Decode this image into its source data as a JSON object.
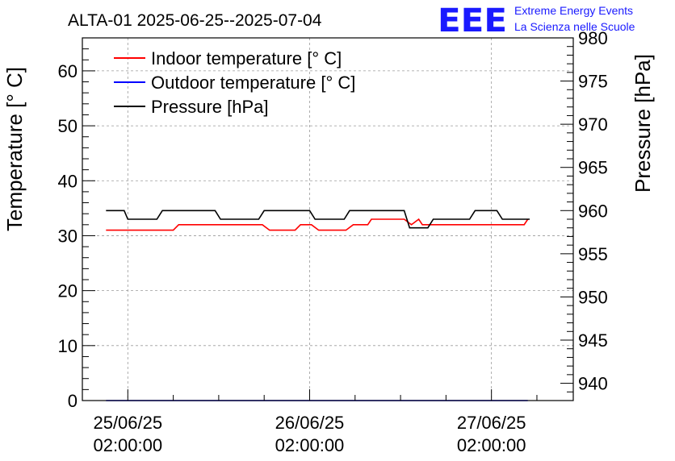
{
  "logo": {
    "big_text": "EEE",
    "line1": "Extreme Energy Events",
    "line2": "La Scienza nelle Scuole",
    "color": "#1a1aff"
  },
  "chart_data": {
    "type": "line",
    "title": "ALTA-01 2025-06-25--2025-07-04",
    "ylabel": "Temperature [° C]",
    "y2label": "Pressure [hPa]",
    "ylim": [
      0,
      66
    ],
    "y2lim": [
      938,
      980
    ],
    "xlim": [
      -0.25,
      2.45
    ],
    "yticks": [
      0,
      10,
      20,
      30,
      40,
      50,
      60
    ],
    "y2ticks": [
      940,
      945,
      950,
      955,
      960,
      965,
      970,
      975,
      980
    ],
    "xticks": [
      {
        "value": 0,
        "label_line1": "25/06/25",
        "label_line2": "02:00:00"
      },
      {
        "value": 1,
        "label_line1": "26/06/25",
        "label_line2": "02:00:00"
      },
      {
        "value": 2,
        "label_line1": "27/06/25",
        "label_line2": "02:00:00"
      }
    ],
    "grid": true,
    "legend_position": "top-left",
    "series": [
      {
        "name": "Indoor temperature [° C]",
        "color": "#ff0000",
        "axis": "left",
        "x": [
          -0.12,
          0.25,
          0.28,
          0.74,
          0.78,
          0.92,
          0.95,
          1.01,
          1.05,
          1.2,
          1.24,
          1.32,
          1.34,
          1.52,
          1.56,
          1.6,
          1.62,
          2.18,
          2.2
        ],
        "y": [
          31,
          31,
          32,
          32,
          31,
          31,
          32,
          32,
          31,
          31,
          32,
          32,
          33,
          33,
          32,
          33,
          32,
          32,
          33
        ]
      },
      {
        "name": "Outdoor temperature [° C]",
        "color": "#0000ff",
        "axis": "left",
        "x": [
          -0.12,
          2.2
        ],
        "y": [
          0,
          0
        ]
      },
      {
        "name": "Pressure [hPa]",
        "color": "#000000",
        "axis": "right",
        "x": [
          -0.12,
          -0.02,
          0.0,
          0.16,
          0.19,
          0.48,
          0.51,
          0.72,
          0.75,
          1.0,
          1.03,
          1.19,
          1.22,
          1.52,
          1.55,
          1.65,
          1.68,
          1.88,
          1.91,
          2.03,
          2.06,
          2.21
        ],
        "y": [
          960,
          960,
          959,
          959,
          960,
          960,
          959,
          959,
          960,
          960,
          959,
          959,
          960,
          960,
          958,
          958,
          959,
          959,
          960,
          960,
          959,
          959
        ]
      }
    ]
  }
}
